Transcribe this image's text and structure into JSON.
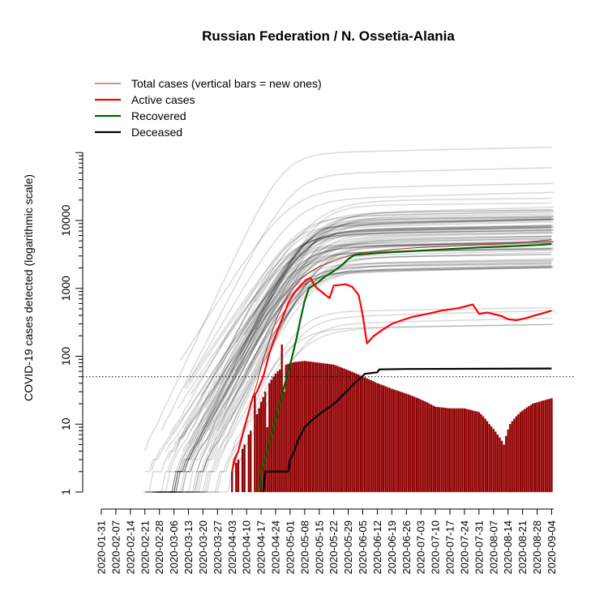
{
  "chart_data": {
    "type": "line",
    "title": "Russian Federation / N. Ossetia-Alania",
    "ylabel": "COVID-19 cases detected (logarithmic scale)",
    "y_scale": "log",
    "ylim": [
      1,
      100000
    ],
    "y_ticks": [
      1,
      10,
      100,
      1000,
      10000
    ],
    "y_tick_labels": [
      "1",
      "10",
      "100",
      "1000",
      "10000"
    ],
    "x_start": "2020-01-31",
    "x_end": "2020-09-05",
    "x_tick_labels": [
      "2020-01-31",
      "2020-02-07",
      "2020-02-14",
      "2020-02-21",
      "2020-02-28",
      "2020-03-06",
      "2020-03-13",
      "2020-03-20",
      "2020-03-27",
      "2020-04-03",
      "2020-04-10",
      "2020-04-17",
      "2020-04-24",
      "2020-05-01",
      "2020-05-08",
      "2020-05-15",
      "2020-05-22",
      "2020-05-29",
      "2020-06-05",
      "2020-06-12",
      "2020-06-19",
      "2020-06-26",
      "2020-07-03",
      "2020-07-10",
      "2020-07-17",
      "2020-07-24",
      "2020-07-31",
      "2020-08-07",
      "2020-08-14",
      "2020-08-21",
      "2020-08-28",
      "2020-09-04"
    ],
    "threshold_line": 50,
    "grid": false,
    "legend_position": "top-left",
    "colors": {
      "total": "#b22222",
      "active": "#ff0000",
      "recovered": "#006400",
      "deceased": "#000000",
      "new_bars": "#8b0000",
      "background_regions": "#000000"
    },
    "legend": [
      {
        "label": "Total cases (vertical bars = new ones)",
        "color": "#b22222",
        "width": 1
      },
      {
        "label": "Active cases",
        "color": "#ff0000",
        "width": 2.2
      },
      {
        "label": "Recovered",
        "color": "#006400",
        "width": 2.2
      },
      {
        "label": "Deceased",
        "color": "#000000",
        "width": 2.2
      }
    ],
    "series": [
      {
        "key": "total",
        "points": [
          [
            "2020-04-03",
            2
          ],
          [
            "2020-04-06",
            4
          ],
          [
            "2020-04-09",
            9
          ],
          [
            "2020-04-12",
            20
          ],
          [
            "2020-04-15",
            40
          ],
          [
            "2020-04-18",
            90
          ],
          [
            "2020-04-21",
            170
          ],
          [
            "2020-04-24",
            330
          ],
          [
            "2020-04-27",
            530
          ],
          [
            "2020-04-30",
            800
          ],
          [
            "2020-05-03",
            1050
          ],
          [
            "2020-05-06",
            1350
          ],
          [
            "2020-05-10",
            1700
          ],
          [
            "2020-05-15",
            2100
          ],
          [
            "2020-05-22",
            2550
          ],
          [
            "2020-05-29",
            3000
          ],
          [
            "2020-06-05",
            3350
          ],
          [
            "2020-06-19",
            3750
          ],
          [
            "2020-07-03",
            4000
          ],
          [
            "2020-07-17",
            4200
          ],
          [
            "2020-08-01",
            4400
          ],
          [
            "2020-08-15",
            4550
          ],
          [
            "2020-09-04",
            5200
          ]
        ]
      },
      {
        "key": "active",
        "points": [
          [
            "2020-04-03",
            2
          ],
          [
            "2020-04-04",
            3
          ],
          [
            "2020-04-06",
            4
          ],
          [
            "2020-04-09",
            9
          ],
          [
            "2020-04-11",
            15
          ],
          [
            "2020-04-13",
            25
          ],
          [
            "2020-04-15",
            30
          ],
          [
            "2020-04-18",
            50
          ],
          [
            "2020-04-21",
            110
          ],
          [
            "2020-04-24",
            200
          ],
          [
            "2020-04-27",
            350
          ],
          [
            "2020-04-30",
            600
          ],
          [
            "2020-05-03",
            850
          ],
          [
            "2020-05-06",
            1100
          ],
          [
            "2020-05-09",
            1350
          ],
          [
            "2020-05-11",
            1420
          ],
          [
            "2020-05-12",
            1200
          ],
          [
            "2020-05-14",
            1000
          ],
          [
            "2020-05-16",
            900
          ],
          [
            "2020-05-18",
            800
          ],
          [
            "2020-05-20",
            720
          ],
          [
            "2020-05-22",
            1100
          ],
          [
            "2020-05-28",
            1150
          ],
          [
            "2020-05-31",
            1050
          ],
          [
            "2020-06-03",
            800
          ],
          [
            "2020-06-05",
            400
          ],
          [
            "2020-06-07",
            155
          ],
          [
            "2020-06-10",
            195
          ],
          [
            "2020-06-14",
            240
          ],
          [
            "2020-06-19",
            300
          ],
          [
            "2020-06-24",
            340
          ],
          [
            "2020-06-29",
            380
          ],
          [
            "2020-07-06",
            420
          ],
          [
            "2020-07-13",
            470
          ],
          [
            "2020-07-21",
            510
          ],
          [
            "2020-07-28",
            580
          ],
          [
            "2020-07-31",
            420
          ],
          [
            "2020-08-04",
            440
          ],
          [
            "2020-08-11",
            390
          ],
          [
            "2020-08-14",
            350
          ],
          [
            "2020-08-18",
            340
          ],
          [
            "2020-08-22",
            360
          ],
          [
            "2020-08-27",
            400
          ],
          [
            "2020-09-01",
            440
          ],
          [
            "2020-09-04",
            470
          ]
        ]
      },
      {
        "key": "recovered",
        "points": [
          [
            "2020-04-16",
            1
          ],
          [
            "2020-04-17",
            2
          ],
          [
            "2020-04-20",
            4
          ],
          [
            "2020-04-22",
            7
          ],
          [
            "2020-04-24",
            12
          ],
          [
            "2020-04-26",
            20
          ],
          [
            "2020-04-28",
            35
          ],
          [
            "2020-04-30",
            60
          ],
          [
            "2020-05-02",
            100
          ],
          [
            "2020-05-04",
            180
          ],
          [
            "2020-05-06",
            350
          ],
          [
            "2020-05-08",
            650
          ],
          [
            "2020-05-10",
            1000
          ],
          [
            "2020-05-14",
            1200
          ],
          [
            "2020-05-18",
            1500
          ],
          [
            "2020-05-22",
            1800
          ],
          [
            "2020-05-26",
            2200
          ],
          [
            "2020-05-29",
            2700
          ],
          [
            "2020-06-01",
            3100
          ],
          [
            "2020-06-12",
            3300
          ],
          [
            "2020-06-19",
            3400
          ],
          [
            "2020-07-03",
            3600
          ],
          [
            "2020-07-17",
            3800
          ],
          [
            "2020-07-31",
            4000
          ],
          [
            "2020-08-14",
            4150
          ],
          [
            "2020-08-28",
            4350
          ],
          [
            "2020-09-04",
            4500
          ]
        ]
      },
      {
        "key": "deceased",
        "points": [
          [
            "2020-04-18",
            1
          ],
          [
            "2020-04-19",
            2
          ],
          [
            "2020-04-30",
            2
          ],
          [
            "2020-05-01",
            3
          ],
          [
            "2020-05-03",
            4
          ],
          [
            "2020-05-05",
            6
          ],
          [
            "2020-05-08",
            9
          ],
          [
            "2020-05-11",
            11
          ],
          [
            "2020-05-15",
            14
          ],
          [
            "2020-05-19",
            17
          ],
          [
            "2020-05-23",
            21
          ],
          [
            "2020-05-26",
            26
          ],
          [
            "2020-05-29",
            32
          ],
          [
            "2020-06-01",
            40
          ],
          [
            "2020-06-04",
            48
          ],
          [
            "2020-06-06",
            55
          ],
          [
            "2020-06-12",
            58
          ],
          [
            "2020-06-13",
            64
          ],
          [
            "2020-06-26",
            65
          ],
          [
            "2020-09-04",
            66
          ]
        ]
      }
    ],
    "new_cases_bars": {
      "anchors": [
        [
          "2020-04-03",
          2
        ],
        [
          "2020-04-06",
          3
        ],
        [
          "2020-04-09",
          5
        ],
        [
          "2020-04-12",
          8
        ],
        [
          "2020-04-15",
          14
        ],
        [
          "2020-04-18",
          25
        ],
        [
          "2020-04-21",
          40
        ],
        [
          "2020-04-25",
          60
        ],
        [
          "2020-04-29",
          75
        ],
        [
          "2020-05-03",
          82
        ],
        [
          "2020-05-08",
          85
        ],
        [
          "2020-05-15",
          80
        ],
        [
          "2020-05-22",
          75
        ],
        [
          "2020-05-29",
          62
        ],
        [
          "2020-06-05",
          50
        ],
        [
          "2020-06-12",
          40
        ],
        [
          "2020-06-19",
          33
        ],
        [
          "2020-06-26",
          28
        ],
        [
          "2020-07-03",
          23
        ],
        [
          "2020-07-10",
          18
        ],
        [
          "2020-07-17",
          17
        ],
        [
          "2020-07-24",
          17
        ],
        [
          "2020-07-31",
          15
        ],
        [
          "2020-08-05",
          10
        ],
        [
          "2020-08-09",
          7
        ],
        [
          "2020-08-12",
          5
        ],
        [
          "2020-08-15",
          10
        ],
        [
          "2020-08-20",
          15
        ],
        [
          "2020-08-26",
          20
        ],
        [
          "2020-09-04",
          24
        ]
      ],
      "highlights": [
        [
          "2020-04-14",
          28
        ],
        [
          "2020-04-16",
          17
        ],
        [
          "2020-04-20",
          9
        ],
        [
          "2020-04-27",
          148
        ],
        [
          "2020-04-28",
          30
        ]
      ]
    },
    "background_regions": {
      "count": 85,
      "description_free": true
    }
  }
}
